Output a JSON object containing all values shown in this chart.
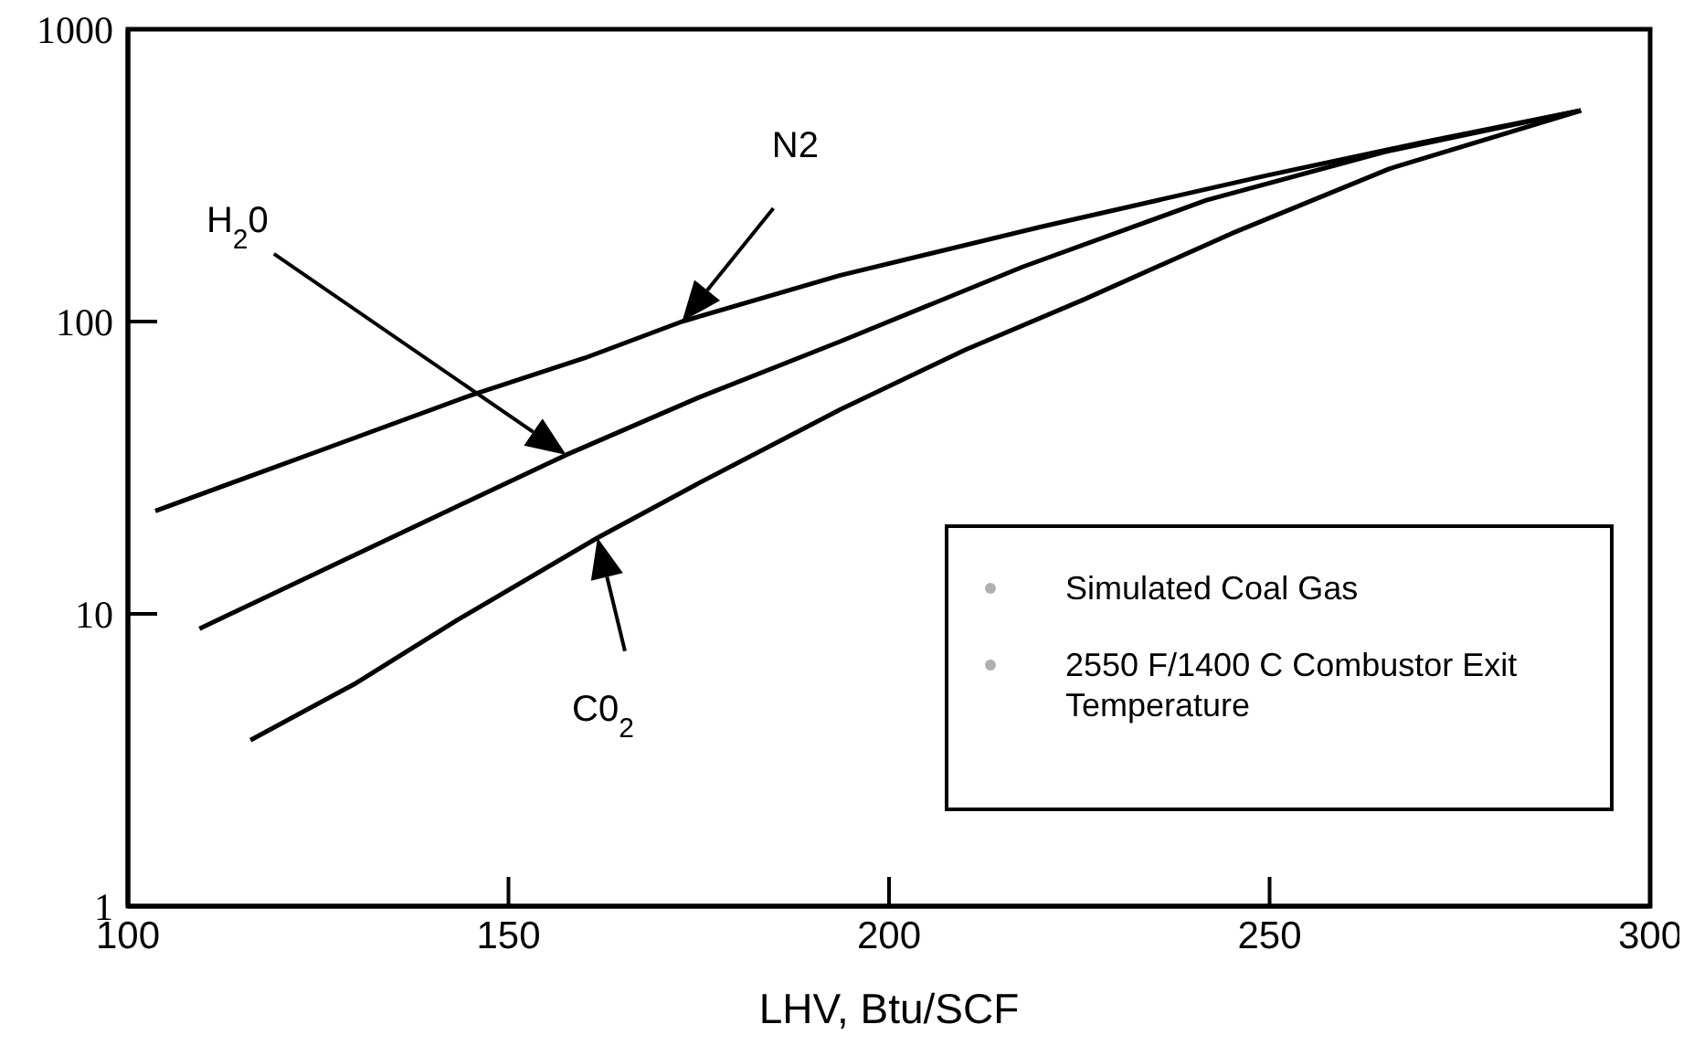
{
  "chart_data": {
    "type": "line",
    "xlabel": "LHV, Btu/SCF",
    "xlim": [
      100,
      300
    ],
    "xticks": [
      100,
      150,
      200,
      250,
      300
    ],
    "ylim": [
      1,
      1000
    ],
    "yticks": [
      1,
      10,
      100,
      1000
    ],
    "log": "y",
    "grid": false,
    "marker": "none",
    "line_style": "solid",
    "series": [
      {
        "color": "#000000",
        "x": [
          103.6,
          125,
          145.1,
          160,
          172.8,
          193.6,
          220,
          249.6,
          270,
          290.9
        ],
        "values": [
          22.5,
          36,
          56,
          75,
          100,
          144,
          211,
          316,
          410,
          527
        ]
      },
      {
        "color": "#000000",
        "x": [
          109.4,
          130,
          157.6,
          175,
          193.6,
          217.6,
          241.7,
          265,
          290.9
        ],
        "values": [
          8.9,
          16,
          35,
          55,
          85.5,
          154,
          260,
          380,
          527
        ]
      },
      {
        "color": "#000000",
        "x": [
          116.1,
          130,
          143.2,
          161.7,
          175,
          193.6,
          210,
          225.6,
          245,
          265.7,
          290.9
        ],
        "values": [
          3.7,
          5.8,
          9.5,
          18.2,
          28,
          50,
          80,
          119,
          200,
          333,
          527
        ]
      }
    ],
    "annotations": [
      "N2",
      "H$_{2}$0",
      "C0$_{2}$",
      "Simulated Coal Gas",
      "2550 F/1400 C Combustor Exit Temperature"
    ]
  }
}
